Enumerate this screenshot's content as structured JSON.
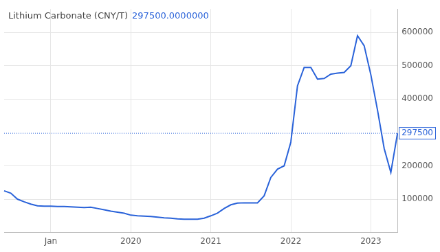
{
  "chart_data": {
    "type": "line",
    "title": "Lithium Carbonate (CNY/T)",
    "subtitle": "297500.0000000",
    "categories": [
      null,
      null,
      null,
      null,
      null,
      null,
      null,
      "Jan",
      null,
      null,
      null,
      null,
      null,
      null,
      null,
      null,
      null,
      null,
      null,
      "2020",
      null,
      null,
      null,
      null,
      null,
      null,
      null,
      null,
      null,
      null,
      null,
      "2021",
      null,
      null,
      null,
      null,
      null,
      null,
      null,
      null,
      null,
      null,
      null,
      "2022",
      null,
      null,
      null,
      null,
      null,
      null,
      null,
      null,
      null,
      null,
      null,
      "2023",
      null,
      null,
      null,
      null
    ],
    "values": [
      125000,
      118000,
      100000,
      92000,
      85000,
      80000,
      79000,
      79000,
      78000,
      78000,
      77000,
      76000,
      75000,
      76000,
      72000,
      68000,
      64000,
      61000,
      58000,
      52000,
      50000,
      49000,
      48000,
      46000,
      44000,
      43000,
      41000,
      40000,
      40000,
      40000,
      43000,
      50000,
      58000,
      72000,
      83000,
      88000,
      89000,
      89000,
      89000,
      110000,
      165000,
      190000,
      200000,
      271000,
      440000,
      495000,
      495000,
      460000,
      462000,
      475000,
      478000,
      480000,
      500000,
      590000,
      560000,
      473000,
      367000,
      252000,
      180000,
      297500
    ],
    "color": "#2962d9",
    "ylim": [
      0,
      670000
    ],
    "yticks": [
      100000,
      200000,
      400000,
      500000,
      600000
    ],
    "grid": true,
    "annotations": [
      {
        "text": "297500",
        "y": 297500
      }
    ]
  }
}
